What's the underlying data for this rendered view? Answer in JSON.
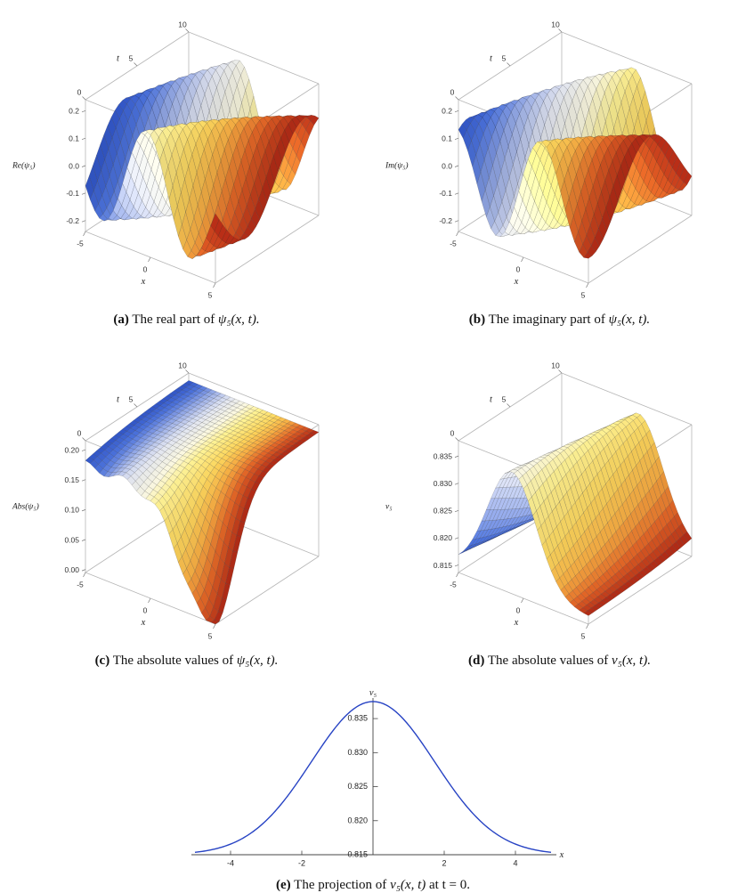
{
  "figure": {
    "captions": {
      "a": {
        "label": "(a)",
        "text": "The real part of",
        "math": "ψ₅(x, t)."
      },
      "b": {
        "label": "(b)",
        "text": "The imaginary part of",
        "math": "ψ₅(x, t)."
      },
      "c": {
        "label": "(c)",
        "text": "The absolute values of",
        "math": "ψ₅(x, t)."
      },
      "d": {
        "label": "(d)",
        "text": "The absolute values of",
        "math": "ν₅(x, t)."
      },
      "e": {
        "label": "(e)",
        "text": "The projection of",
        "math": "ν₅(x, t)",
        "suffix": "at t = 0."
      }
    }
  },
  "style": {
    "surface_colormap": [
      [
        0,
        "#2c4fbe"
      ],
      [
        0.1,
        "#4a6fd4"
      ],
      [
        0.2,
        "#8fa3de"
      ],
      [
        0.32,
        "#d8dce9"
      ],
      [
        0.45,
        "#f2efd8"
      ],
      [
        0.55,
        "#f5e98f"
      ],
      [
        0.68,
        "#f3cf5a"
      ],
      [
        0.78,
        "#eda43f"
      ],
      [
        0.88,
        "#d95f24"
      ],
      [
        1,
        "#a32113"
      ]
    ],
    "line_color": "#2743c4",
    "axis_color": "#444444",
    "box_color": "#b6b6b6",
    "tick_text_color": "#333333"
  },
  "chart_data": [
    {
      "id": "a",
      "type": "surface3d",
      "xlabel": "x",
      "tlabel": "t",
      "zlabel": "Re(ψ₅)",
      "x_range": [
        -5,
        5
      ],
      "t_range": [
        0,
        10
      ],
      "z_range": [
        -0.24,
        0.24
      ],
      "x_ticks": [
        -5,
        0,
        5
      ],
      "x_tick_labels": [
        "-5",
        "0",
        "5"
      ],
      "t_ticks": [
        0,
        5,
        10
      ],
      "t_tick_labels": [
        "0",
        "5",
        "10"
      ],
      "z_ticks": [
        0.2,
        0.1,
        0,
        -0.1,
        -0.2
      ],
      "z_tick_labels": [
        "0.2",
        "0.1",
        "0.0",
        "-0.1",
        "-0.2"
      ],
      "formula": {
        "kind": "wave",
        "amp": 0.215,
        "env_sigma": 70,
        "k": 0.9,
        "omega": -0.55,
        "phase": 0.3,
        "trig": "cos"
      }
    },
    {
      "id": "b",
      "type": "surface3d",
      "xlabel": "x",
      "tlabel": "t",
      "zlabel": "Im(ψ₅)",
      "x_range": [
        -5,
        5
      ],
      "t_range": [
        0,
        10
      ],
      "z_range": [
        -0.24,
        0.24
      ],
      "x_ticks": [
        -5,
        0,
        5
      ],
      "x_tick_labels": [
        "-5",
        "0",
        "5"
      ],
      "t_ticks": [
        0,
        5,
        10
      ],
      "t_tick_labels": [
        "0",
        "5",
        "10"
      ],
      "z_ticks": [
        0.2,
        0.1,
        0,
        -0.1,
        -0.2
      ],
      "z_tick_labels": [
        "0.2",
        "0.1",
        "0.0",
        "-0.1",
        "-0.2"
      ],
      "formula": {
        "kind": "wave",
        "amp": 0.215,
        "env_sigma": 70,
        "k": 0.9,
        "omega": -0.55,
        "phase": 0.3,
        "trig": "sin"
      }
    },
    {
      "id": "c",
      "type": "surface3d",
      "xlabel": "x",
      "tlabel": "t",
      "zlabel": "Abs(ψ₅)",
      "x_range": [
        -5,
        5
      ],
      "t_range": [
        0,
        10
      ],
      "z_range": [
        -0.005,
        0.215
      ],
      "x_ticks": [
        -5,
        0,
        5
      ],
      "x_tick_labels": [
        "-5",
        "0",
        "5"
      ],
      "t_ticks": [
        0,
        5,
        10
      ],
      "t_tick_labels": [
        "0",
        "5",
        "10"
      ],
      "z_ticks": [
        0.2,
        0.15,
        0.1,
        0.05,
        0
      ],
      "z_tick_labels": [
        "0.20",
        "0.15",
        "0.10",
        "0.05",
        "0.00"
      ],
      "formula": {
        "kind": "absdip",
        "base": 0.205,
        "dip": 0.185,
        "cx": 4.6,
        "sx": 9,
        "st": 7,
        "tilt": 0.03,
        "tdecay": 4,
        "ripple": 0.007,
        "rk": 2.2
      }
    },
    {
      "id": "d",
      "type": "surface3d",
      "xlabel": "x",
      "tlabel": "t",
      "zlabel": "ν₅",
      "x_range": [
        -5,
        5
      ],
      "t_range": [
        0,
        10
      ],
      "z_range": [
        0.8136,
        0.8378
      ],
      "x_ticks": [
        -5,
        0,
        5
      ],
      "x_tick_labels": [
        "-5",
        "0",
        "5"
      ],
      "t_ticks": [
        0,
        5,
        10
      ],
      "t_tick_labels": [
        "0",
        "5",
        "10"
      ],
      "z_ticks": [
        0.835,
        0.83,
        0.825,
        0.82,
        0.815
      ],
      "z_tick_labels": [
        "0.835",
        "0.830",
        "0.825",
        "0.820",
        "0.815"
      ],
      "formula": {
        "kind": "hump",
        "base": 0.815,
        "amp": 0.021,
        "sigma": 7,
        "drift": 0.18
      }
    },
    {
      "id": "e",
      "type": "line",
      "xlabel": "x",
      "ylabel": "ν₅",
      "x_range": [
        -5,
        5
      ],
      "y_range": [
        0.815,
        0.8375
      ],
      "x_ticks": [
        -4,
        -2,
        2,
        4
      ],
      "x_tick_labels": [
        "-4",
        "-2",
        "2",
        "4"
      ],
      "y_ticks": [
        0.815,
        0.82,
        0.825,
        0.83,
        0.835
      ],
      "y_tick_labels": [
        "0.815",
        "0.820",
        "0.825",
        "0.830",
        "0.835"
      ],
      "formula": {
        "kind": "hump1d",
        "base": 0.815,
        "amp": 0.0225,
        "sigma": 6
      },
      "points": {
        "x": [
          -5,
          -4,
          -3,
          -2,
          -1,
          0,
          1,
          2,
          3,
          4,
          5
        ],
        "y": [
          0.8153,
          0.8166,
          0.82,
          0.8266,
          0.834,
          0.8375,
          0.834,
          0.8266,
          0.82,
          0.8166,
          0.8153
        ]
      }
    }
  ]
}
